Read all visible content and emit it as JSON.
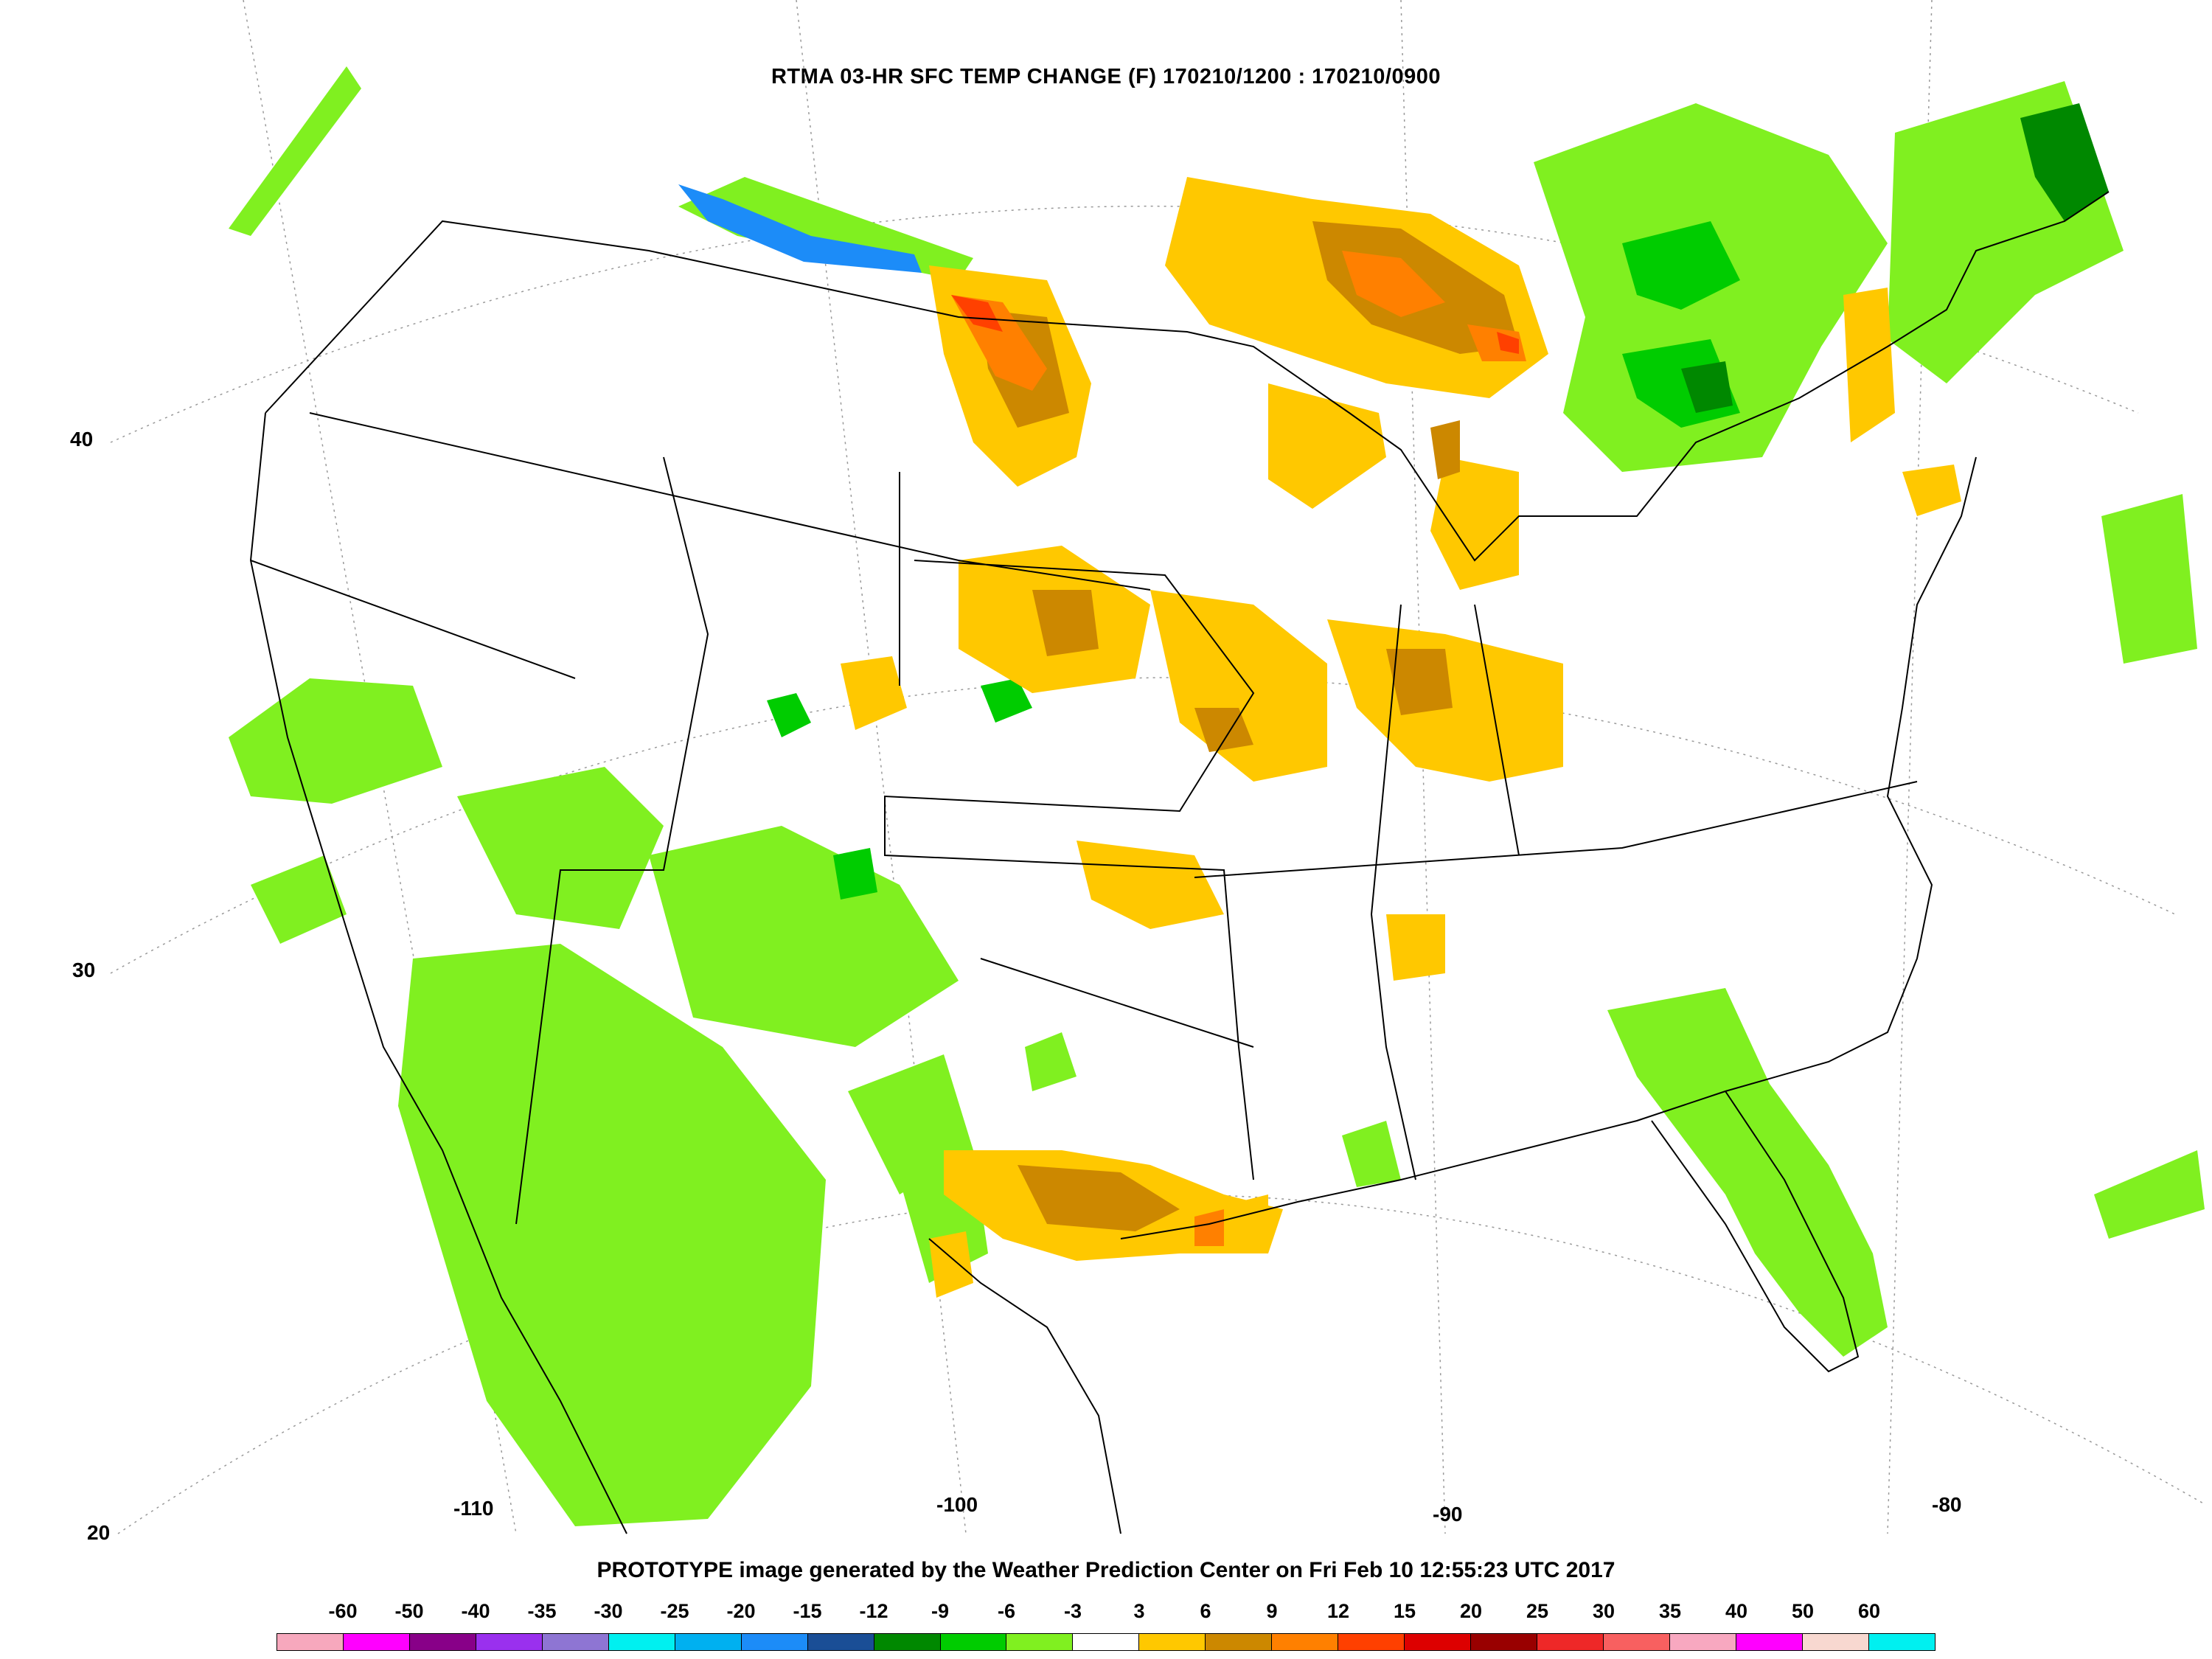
{
  "title": "RTMA 03-HR SFC TEMP CHANGE (F) 170210/1200 : 170210/0900",
  "footer": "PROTOTYPE image generated by the Weather Prediction Center on Fri Feb 10 12:55:23 UTC 2017",
  "latitude_labels": [
    "40",
    "30",
    "20"
  ],
  "longitude_labels": [
    "-110",
    "-100",
    "-90",
    "-80"
  ],
  "legend": {
    "labels": [
      "-60",
      "-50",
      "-40",
      "-35",
      "-30",
      "-25",
      "-20",
      "-15",
      "-12",
      "-9",
      "-6",
      "-3",
      "3",
      "6",
      "9",
      "12",
      "15",
      "20",
      "25",
      "30",
      "35",
      "40",
      "50",
      "60"
    ],
    "colors": [
      "#f7a8bd",
      "#ff00ff",
      "#880088",
      "#9a30ee",
      "#8e75d3",
      "#00f0f0",
      "#00b0f0",
      "#1c8cf8",
      "#1a4e96",
      "#008800",
      "#00cc00",
      "#80f020",
      "#ffffff",
      "#ffc800",
      "#cc8800",
      "#ff8000",
      "#ff4000",
      "#dd0000",
      "#990000",
      "#ee2828",
      "#f86060",
      "#f8a8c0",
      "#ff00ff",
      "#f8d8d0",
      "#00f0f0"
    ]
  },
  "map": {
    "field_colors": {
      "warming_light": "#ffc800",
      "warming_moderate": "#cc8800",
      "warming_strong": "#ff8000",
      "warming_stronger": "#ff4000",
      "cooling_light": "#80f020",
      "cooling_moderate": "#00cc00",
      "cooling_strong": "#008800",
      "cooling_deep": "#1c8cf8",
      "cooling_deepest": "#1a4e96",
      "outline": "#000000",
      "grid": "#999999"
    }
  }
}
